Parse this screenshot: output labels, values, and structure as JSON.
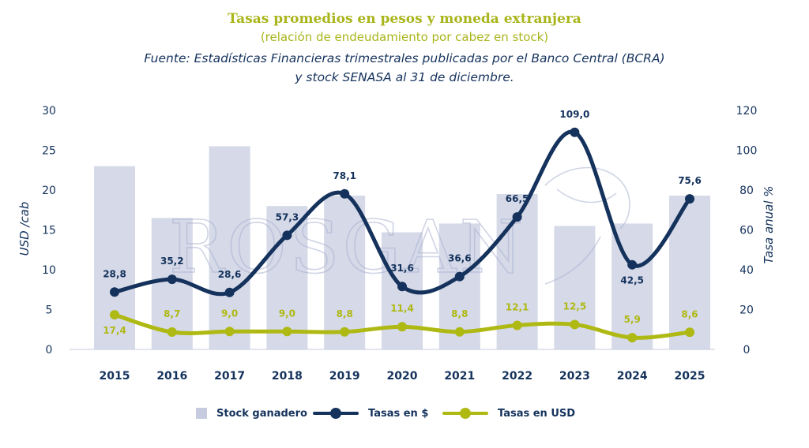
{
  "header": {
    "title": "Tasas promedios en pesos y moneda extranjera",
    "subtitle": "(relación de endeudamiento por cabez en stock)",
    "source_line1": "Fuente: Estadísticas Financieras trimestrales publicadas por el Banco Central (BCRA)",
    "source_line2": "y stock SENASA al 31 de diciembre."
  },
  "watermark": "ROSGAN",
  "legend": {
    "stock": "Stock ganadero",
    "pesos": "Tasas en $",
    "usd": "Tasas en USD"
  },
  "colors": {
    "bars": "#d5d9e8",
    "pesos": "#14325c",
    "usd": "#afb913",
    "title": "#a9b51b",
    "axis_text": "#14325c"
  },
  "chart_data": {
    "type": "bar+line",
    "categories": [
      "2015",
      "2016",
      "2017",
      "2018",
      "2019",
      "2020",
      "2021",
      "2022",
      "2023",
      "2024",
      "2025"
    ],
    "left_axis": {
      "label": "USD /cab",
      "range": [
        0,
        30
      ],
      "ticks": [
        "0",
        "5",
        "10",
        "15",
        "20",
        "25",
        "30"
      ]
    },
    "right_axis": {
      "label": "Tasa anual %",
      "range": [
        0,
        120
      ],
      "ticks": [
        "0",
        "20",
        "40",
        "60",
        "80",
        "100",
        "120"
      ]
    },
    "series": [
      {
        "name": "Stock ganadero",
        "type": "bar",
        "axis": "left",
        "values": [
          23.0,
          16.5,
          25.5,
          18.0,
          19.3,
          14.7,
          15.8,
          19.5,
          15.5,
          15.8,
          19.3
        ]
      },
      {
        "name": "Tasas en $",
        "type": "line",
        "axis": "right",
        "values": [
          28.8,
          35.2,
          28.6,
          57.3,
          78.1,
          31.6,
          36.6,
          66.5,
          109.0,
          42.5,
          75.6
        ],
        "labels": [
          "28,8",
          "35,2",
          "28,6",
          "57,3",
          "78,1",
          "31,6",
          "36,6",
          "66,5",
          "109,0",
          "42,5",
          "75,6"
        ]
      },
      {
        "name": "Tasas en USD",
        "type": "line",
        "axis": "right",
        "values": [
          17.4,
          8.7,
          9.0,
          9.0,
          8.8,
          11.4,
          8.8,
          12.1,
          12.5,
          5.9,
          8.6
        ],
        "labels": [
          "17,4",
          "8,7",
          "9,0",
          "9,0",
          "8,8",
          "11,4",
          "8,8",
          "12,1",
          "12,5",
          "5,9",
          "8,6"
        ]
      }
    ],
    "grid": false,
    "legend_position": "bottom"
  }
}
